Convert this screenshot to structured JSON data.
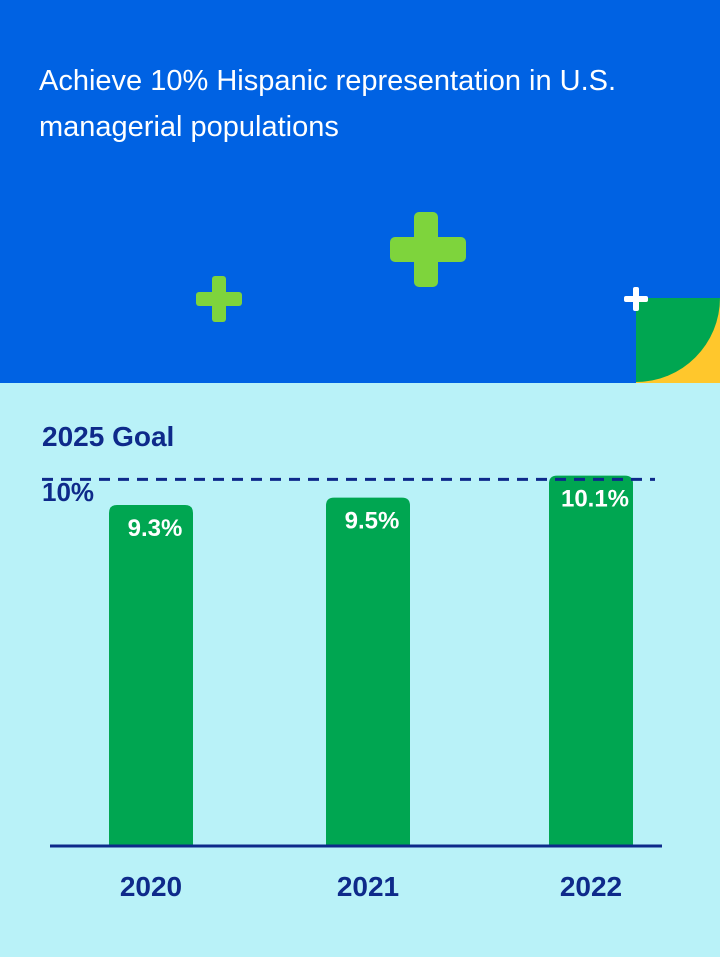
{
  "header": {
    "title": "Achieve 10% Hispanic representation in U.S. managerial populations",
    "background_color": "#0062e3",
    "decorations": [
      "plus-icon",
      "plus-icon",
      "plus-icon",
      "quarter-circle-corner"
    ]
  },
  "chart_data": {
    "type": "bar",
    "categories": [
      "2020",
      "2021",
      "2022"
    ],
    "values": [
      9.3,
      9.5,
      10.1
    ],
    "data_labels": [
      "9.3%",
      "9.5%",
      "10.1%"
    ],
    "reference_line": {
      "value": 10,
      "label": "2025 Goal",
      "value_label": "10%",
      "style": "dashed"
    },
    "ylim": [
      0,
      10.5
    ],
    "grid": false,
    "colors": {
      "bar": "#00a651",
      "axis": "#0e2a8a",
      "background": "#b9f2f8",
      "label": "#0e2a8a"
    }
  }
}
